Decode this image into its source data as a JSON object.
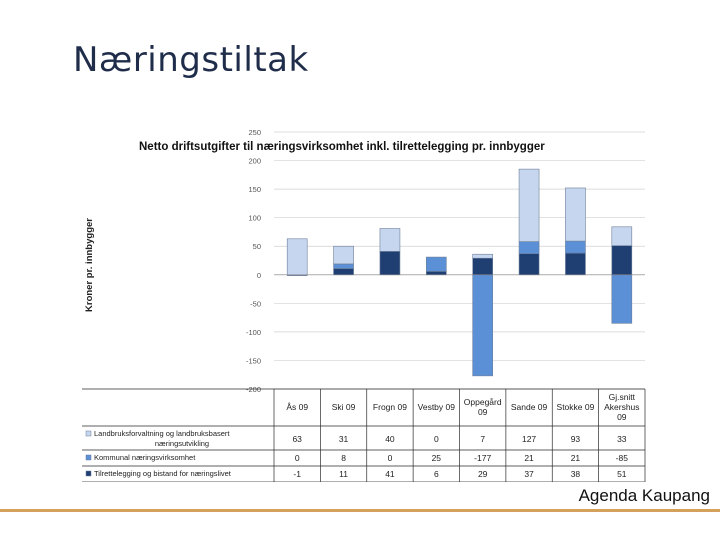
{
  "slide": {
    "title": "Næringstiltak",
    "brand": "Agenda Kaupang"
  },
  "colors": {
    "landbruk": "#c6d6ee",
    "kommunal": "#5b8fd6",
    "tilrette": "#1f3f73",
    "grid": "#d0d0d0",
    "border": "#2a2a2a"
  },
  "chart_data": {
    "type": "bar",
    "stacked": true,
    "title": "Netto driftsutgifter til næringsvirksomhet inkl. tilrettelegging pr. innbygger",
    "ylabel": "Kroner pr. innbygger",
    "ylim": [
      -200,
      250
    ],
    "yticks": [
      250,
      200,
      150,
      100,
      50,
      0,
      -50,
      -100,
      -150,
      -200
    ],
    "grid": true,
    "legend_placement": "data-table-left",
    "categories": [
      "Ås 09",
      "Ski 09",
      "Frogn 09",
      "Vestby 09",
      "Oppegård 09",
      "Sande 09",
      "Stokke 09",
      "Gj.snitt Akershus 09"
    ],
    "series": [
      {
        "name": "Landbruksforvaltning og landbruksbasert næringsutvikling",
        "color": "#c6d6ee",
        "values": [
          63,
          31,
          40,
          0,
          7,
          127,
          93,
          33
        ]
      },
      {
        "name": "Kommunal næringsvirksomhet",
        "color": "#5b8fd6",
        "values": [
          0,
          8,
          0,
          25,
          -177,
          21,
          21,
          -85
        ]
      },
      {
        "name": "Tilrettelegging og bistand for næringslivet",
        "color": "#1f3f73",
        "values": [
          -1,
          11,
          41,
          6,
          29,
          37,
          38,
          51
        ]
      }
    ]
  }
}
